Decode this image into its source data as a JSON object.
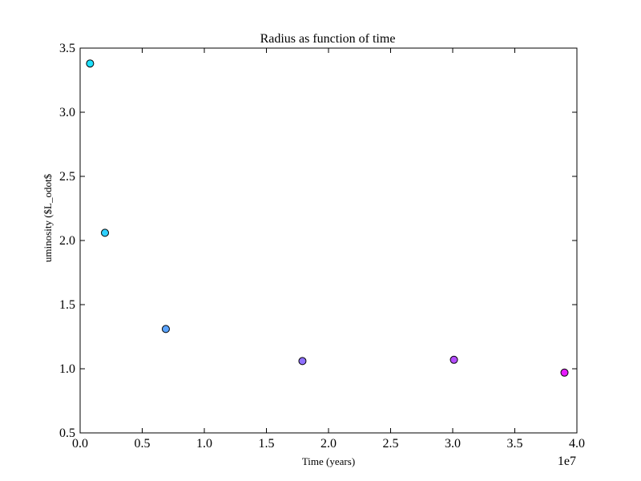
{
  "chart_data": {
    "type": "scatter",
    "title": "Radius as function of time",
    "xlabel": "Time (years)",
    "ylabel": "uminosity ($L_odot$",
    "x_offset_label": "1e7",
    "xlim": [
      0.0,
      4.0
    ],
    "ylim": [
      0.5,
      3.5
    ],
    "x_ticks": [
      "0.0",
      "0.5",
      "1.0",
      "1.5",
      "2.0",
      "2.5",
      "3.0",
      "3.5",
      "4.0"
    ],
    "y_ticks": [
      "0.5",
      "1.0",
      "1.5",
      "2.0",
      "2.5",
      "3.0",
      "3.5"
    ],
    "grid": false,
    "legend": "none",
    "colormap": "cool",
    "points": [
      {
        "x": 0.08,
        "y": 3.38,
        "color": "#1ee1ff"
      },
      {
        "x": 0.2,
        "y": 2.06,
        "color": "#2fd0ff"
      },
      {
        "x": 0.69,
        "y": 1.31,
        "color": "#5ba4ff"
      },
      {
        "x": 1.79,
        "y": 1.06,
        "color": "#8f70ff"
      },
      {
        "x": 3.01,
        "y": 1.07,
        "color": "#b34cff"
      },
      {
        "x": 3.9,
        "y": 0.97,
        "color": "#e61aff"
      }
    ]
  }
}
